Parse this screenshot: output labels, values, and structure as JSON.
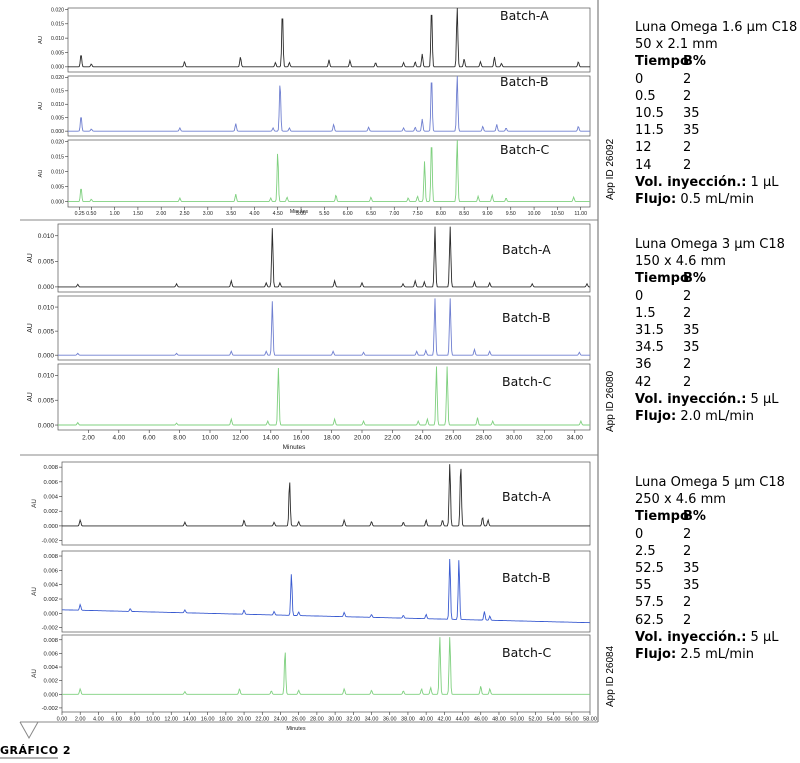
{
  "footer": {
    "label": "GRÁFICO 2"
  },
  "chart_data": [
    {
      "type": "line",
      "app_id": "App ID 26092",
      "xlabel": "Minutes",
      "ylabel": "AU",
      "xlim": [
        0,
        11.2
      ],
      "ylim": [
        -0.0018,
        0.0205
      ],
      "yticks": [
        0.0,
        0.005,
        0.01,
        0.015,
        0.02
      ],
      "ytick_labels": [
        "0.000",
        "0.005",
        "0.010",
        "0.015",
        "0.020"
      ],
      "xticks": [
        0.25,
        0.5,
        1,
        1.5,
        2,
        2.5,
        3,
        3.5,
        4,
        4.5,
        5,
        5.5,
        6,
        6.5,
        7,
        7.5,
        8,
        8.5,
        9,
        9.5,
        10,
        10.5,
        11
      ],
      "xtick_labels": [
        "0.25",
        "0.50",
        "1.00",
        "1.50",
        "2.00",
        "2.50",
        "3.00",
        "3.50",
        "4.00",
        "4.50",
        "5.00",
        "5.50",
        "6.00",
        "6.50",
        "7.00",
        "7.50",
        "8.00",
        "8.50",
        "9.00",
        "9.50",
        "10.00",
        "10.50",
        "11.00"
      ],
      "series": [
        {
          "name": "Batch-A",
          "color": "#2b2b2b",
          "baseline": 0.0,
          "drift": 0.0,
          "peaks": [
            [
              0.28,
              0.0045
            ],
            [
              0.5,
              0.001
            ],
            [
              2.5,
              0.0018
            ],
            [
              3.7,
              0.0035
            ],
            [
              4.45,
              0.0015
            ],
            [
              4.6,
              0.0195
            ],
            [
              4.75,
              0.0015
            ],
            [
              5.6,
              0.0025
            ],
            [
              6.05,
              0.0022
            ],
            [
              6.6,
              0.0015
            ],
            [
              7.2,
              0.0015
            ],
            [
              7.45,
              0.0018
            ],
            [
              7.6,
              0.0045
            ],
            [
              7.8,
              0.021
            ],
            [
              8.35,
              0.021
            ],
            [
              8.5,
              0.0028
            ],
            [
              8.85,
              0.0018
            ],
            [
              9.15,
              0.0035
            ],
            [
              9.3,
              0.0012
            ],
            [
              10.95,
              0.0018
            ]
          ]
        },
        {
          "name": "Batch-B",
          "color": "#6f7fd0",
          "baseline": 0.0,
          "drift": 0.0,
          "peaks": [
            [
              0.28,
              0.0058
            ],
            [
              0.5,
              0.0008
            ],
            [
              2.4,
              0.0012
            ],
            [
              3.6,
              0.0028
            ],
            [
              4.4,
              0.0012
            ],
            [
              4.55,
              0.0185
            ],
            [
              4.75,
              0.0012
            ],
            [
              5.7,
              0.0025
            ],
            [
              6.45,
              0.0015
            ],
            [
              7.2,
              0.0012
            ],
            [
              7.45,
              0.0015
            ],
            [
              7.6,
              0.0045
            ],
            [
              7.8,
              0.021
            ],
            [
              8.35,
              0.021
            ],
            [
              8.9,
              0.0018
            ],
            [
              9.2,
              0.0025
            ],
            [
              9.4,
              0.0012
            ],
            [
              10.95,
              0.0018
            ]
          ]
        },
        {
          "name": "Batch-C",
          "color": "#7fd07f",
          "baseline": 0.0,
          "drift": 0.0,
          "peaks": [
            [
              0.28,
              0.0048
            ],
            [
              0.5,
              0.0008
            ],
            [
              2.4,
              0.0012
            ],
            [
              3.6,
              0.0025
            ],
            [
              4.35,
              0.0012
            ],
            [
              4.5,
              0.0165
            ],
            [
              4.7,
              0.0015
            ],
            [
              5.75,
              0.0022
            ],
            [
              6.5,
              0.0015
            ],
            [
              7.3,
              0.0012
            ],
            [
              7.5,
              0.0018
            ],
            [
              7.65,
              0.0135
            ],
            [
              7.8,
              0.021
            ],
            [
              8.35,
              0.021
            ],
            [
              8.8,
              0.0018
            ],
            [
              9.1,
              0.0022
            ],
            [
              9.4,
              0.0012
            ],
            [
              10.85,
              0.0015
            ]
          ]
        }
      ],
      "method": {
        "column": "Luna Omega 1.6 µm C18",
        "dimensions": "50 x 2.1 mm",
        "header_time": "Tiempo",
        "header_b": "B%",
        "gradient": [
          [
            "0",
            "2"
          ],
          [
            "0.5",
            "2"
          ],
          [
            "10.5",
            "35"
          ],
          [
            "11.5",
            "35"
          ],
          [
            "12",
            "2"
          ],
          [
            "14",
            "2"
          ]
        ],
        "injection_label": "Vol. inyección.:",
        "injection_value": "1 µL",
        "flow_label": "Flujo:",
        "flow_value": "0.5 mL/min"
      }
    },
    {
      "type": "line",
      "app_id": "App ID 26080",
      "xlabel": "Minutes",
      "ylabel": "AU",
      "xlim": [
        0,
        35
      ],
      "ylim": [
        -0.001,
        0.0123
      ],
      "yticks": [
        0.0,
        0.005,
        0.01
      ],
      "ytick_labels": [
        "0.000",
        "0.005",
        "0.010"
      ],
      "xticks": [
        2,
        4,
        6,
        8,
        10,
        12,
        14,
        16,
        18,
        20,
        22,
        24,
        26,
        28,
        30,
        32,
        34
      ],
      "xtick_labels": [
        "2.00",
        "4.00",
        "6.00",
        "8.00",
        "10.00",
        "12.00",
        "14.00",
        "16.00",
        "18.00",
        "20.00",
        "22.00",
        "24.00",
        "26.00",
        "28.00",
        "30.00",
        "32.00",
        "34.00"
      ],
      "series": [
        {
          "name": "Batch-A",
          "color": "#2b2b2b",
          "baseline": 0.0,
          "drift": 0.0,
          "peaks": [
            [
              1.3,
              0.0005
            ],
            [
              7.8,
              0.0006
            ],
            [
              11.4,
              0.0012
            ],
            [
              13.7,
              0.0008
            ],
            [
              14.1,
              0.0115
            ],
            [
              14.6,
              0.0008
            ],
            [
              18.2,
              0.0012
            ],
            [
              20.0,
              0.0008
            ],
            [
              22.7,
              0.0006
            ],
            [
              23.5,
              0.0012
            ],
            [
              24.1,
              0.001
            ],
            [
              24.8,
              0.0118
            ],
            [
              25.8,
              0.0118
            ],
            [
              27.4,
              0.001
            ],
            [
              28.4,
              0.0008
            ],
            [
              31.2,
              0.0006
            ],
            [
              34.8,
              0.0006
            ]
          ]
        },
        {
          "name": "Batch-B",
          "color": "#6f7fd0",
          "baseline": 0.0,
          "drift": 0.0,
          "peaks": [
            [
              1.3,
              0.0004
            ],
            [
              7.8,
              0.0004
            ],
            [
              11.4,
              0.0008
            ],
            [
              13.7,
              0.0008
            ],
            [
              14.1,
              0.0112
            ],
            [
              18.1,
              0.0008
            ],
            [
              20.1,
              0.0006
            ],
            [
              23.6,
              0.0008
            ],
            [
              24.2,
              0.001
            ],
            [
              24.8,
              0.0118
            ],
            [
              25.8,
              0.0118
            ],
            [
              27.4,
              0.0012
            ],
            [
              28.4,
              0.0008
            ],
            [
              34.3,
              0.0006
            ]
          ]
        },
        {
          "name": "Batch-C",
          "color": "#7fd07f",
          "baseline": 0.0,
          "drift": 0.0,
          "peaks": [
            [
              1.3,
              0.0005
            ],
            [
              7.8,
              0.0004
            ],
            [
              11.4,
              0.0012
            ],
            [
              13.8,
              0.0008
            ],
            [
              14.5,
              0.0115
            ],
            [
              18.2,
              0.0012
            ],
            [
              20.1,
              0.0008
            ],
            [
              23.7,
              0.0008
            ],
            [
              24.3,
              0.0012
            ],
            [
              24.9,
              0.0118
            ],
            [
              25.6,
              0.0118
            ],
            [
              27.6,
              0.0015
            ],
            [
              28.6,
              0.0008
            ],
            [
              34.4,
              0.0008
            ]
          ]
        }
      ],
      "method": {
        "column": "Luna Omega 3 µm C18",
        "dimensions": "150 x 4.6 mm",
        "header_time": "Tiempo",
        "header_b": "B%",
        "gradient": [
          [
            "0",
            "2"
          ],
          [
            "1.5",
            "2"
          ],
          [
            "31.5",
            "35"
          ],
          [
            "34.5",
            "35"
          ],
          [
            "36",
            "2"
          ],
          [
            "42",
            "2"
          ]
        ],
        "injection_label": "Vol. inyección.:",
        "injection_value": "5 µL",
        "flow_label": "Flujo:",
        "flow_value": "2.0 mL/min"
      }
    },
    {
      "type": "line",
      "app_id": "App ID 26084",
      "xlabel": "Minutes",
      "ylabel": "AU",
      "xlim": [
        0,
        58
      ],
      "ylim": [
        -0.0026,
        0.0087
      ],
      "yticks": [
        -0.002,
        0.0,
        0.002,
        0.004,
        0.006,
        0.008
      ],
      "ytick_labels": [
        "-0.002",
        "0.000",
        "0.002",
        "0.004",
        "0.006",
        "0.008"
      ],
      "xticks": [
        0,
        2,
        4,
        6,
        8,
        10,
        12,
        14,
        16,
        18,
        20,
        22,
        24,
        26,
        28,
        30,
        32,
        34,
        36,
        38,
        40,
        42,
        44,
        46,
        48,
        50,
        52,
        54,
        56,
        58
      ],
      "xtick_labels": [
        "0.00",
        "2.00",
        "4.00",
        "6.00",
        "8.00",
        "10.00",
        "12.00",
        "14.00",
        "16.00",
        "18.00",
        "20.00",
        "22.00",
        "24.00",
        "26.00",
        "28.00",
        "30.00",
        "32.00",
        "34.00",
        "36.00",
        "38.00",
        "40.00",
        "42.00",
        "44.00",
        "46.00",
        "48.00",
        "50.00",
        "52.00",
        "54.00",
        "56.00",
        "58.00"
      ],
      "series": [
        {
          "name": "Batch-A",
          "color": "#2b2b2b",
          "baseline": 0.0,
          "drift": 0.0,
          "peaks": [
            [
              2.0,
              0.0008
            ],
            [
              13.5,
              0.0005
            ],
            [
              20.0,
              0.0008
            ],
            [
              23.3,
              0.0005
            ],
            [
              25.0,
              0.0062
            ],
            [
              26.0,
              0.0006
            ],
            [
              31.0,
              0.0008
            ],
            [
              34.0,
              0.0006
            ],
            [
              37.5,
              0.0005
            ],
            [
              40.0,
              0.0008
            ],
            [
              41.8,
              0.0008
            ],
            [
              42.6,
              0.0085
            ],
            [
              43.8,
              0.0085
            ],
            [
              46.2,
              0.0012
            ],
            [
              46.8,
              0.0008
            ]
          ]
        },
        {
          "name": "Batch-B",
          "color": "#3a5bd0",
          "baseline": 0.0005,
          "drift": -0.0018,
          "peaks": [
            [
              2.0,
              0.0008
            ],
            [
              7.5,
              0.0004
            ],
            [
              13.5,
              0.0004
            ],
            [
              20.0,
              0.0006
            ],
            [
              23.3,
              0.0005
            ],
            [
              25.2,
              0.0058
            ],
            [
              26.0,
              0.0005
            ],
            [
              31.0,
              0.0006
            ],
            [
              34.0,
              0.0004
            ],
            [
              37.5,
              0.0004
            ],
            [
              40.0,
              0.0006
            ],
            [
              42.6,
              0.0085
            ],
            [
              43.6,
              0.0085
            ],
            [
              46.4,
              0.0012
            ],
            [
              47.0,
              0.0006
            ]
          ]
        },
        {
          "name": "Batch-C",
          "color": "#7fd07f",
          "baseline": 0.0,
          "drift": 0.0,
          "peaks": [
            [
              2.0,
              0.0008
            ],
            [
              13.5,
              0.0004
            ],
            [
              19.5,
              0.0008
            ],
            [
              23.0,
              0.0005
            ],
            [
              24.5,
              0.0065
            ],
            [
              26.0,
              0.0006
            ],
            [
              31.0,
              0.0008
            ],
            [
              34.0,
              0.0006
            ],
            [
              37.5,
              0.0005
            ],
            [
              39.5,
              0.0008
            ],
            [
              40.5,
              0.001
            ],
            [
              41.5,
              0.0085
            ],
            [
              42.6,
              0.0085
            ],
            [
              46.0,
              0.0012
            ],
            [
              47.0,
              0.0008
            ]
          ]
        }
      ],
      "method": {
        "column": "Luna Omega 5 µm C18",
        "dimensions": "250 x 4.6 mm",
        "header_time": "Tiempo",
        "header_b": "B%",
        "gradient": [
          [
            "0",
            "2"
          ],
          [
            "2.5",
            "2"
          ],
          [
            "52.5",
            "35"
          ],
          [
            "55",
            "35"
          ],
          [
            "57.5",
            "2"
          ],
          [
            "62.5",
            "2"
          ]
        ],
        "injection_label": "Vol. inyección.:",
        "injection_value": "5 µL",
        "flow_label": "Flujo:",
        "flow_value": "2.5 mL/min"
      }
    }
  ]
}
